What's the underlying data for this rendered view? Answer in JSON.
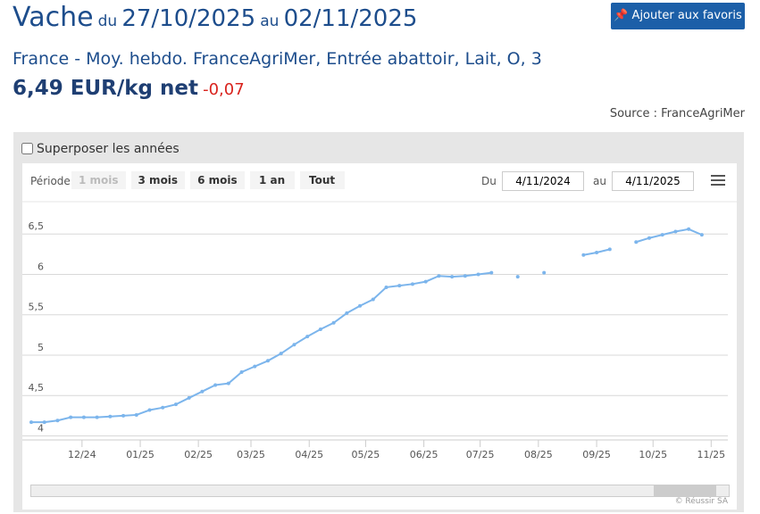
{
  "header": {
    "title": "Vache",
    "from_word": "du",
    "from_date": "27/10/2025",
    "to_word": "au",
    "to_date": "02/11/2025",
    "favorite_button": "Ajouter aux favoris",
    "subtitle": "France - Moy. hebdo. FranceAgriMer, Entrée abattoir, Lait, O, 3",
    "price": "6,49 EUR/kg net",
    "change": "-0,07",
    "source": "Source : FranceAgriMer"
  },
  "controls": {
    "overlay_years": "Superposer les années",
    "period_label": "Période",
    "periods": [
      "1 mois",
      "3 mois",
      "6 mois",
      "1 an",
      "Tout"
    ],
    "from_label": "Du",
    "from_value": "4/11/2024",
    "to_label": "au",
    "to_value": "4/11/2025",
    "credit": "© Réussir SA"
  },
  "chart_data": {
    "type": "line",
    "x": [
      0,
      1,
      2,
      3,
      4,
      5,
      6,
      7,
      8,
      9,
      10,
      11,
      12,
      13,
      14,
      15,
      16,
      17,
      18,
      19,
      20,
      21,
      22,
      23,
      24,
      25,
      26,
      27,
      28,
      29,
      30,
      31,
      32,
      33,
      34,
      35,
      36,
      37,
      38,
      39,
      40,
      41,
      42,
      43,
      44,
      45,
      46,
      47,
      48,
      49,
      50,
      51
    ],
    "series": [
      {
        "name": "Vache",
        "color": "#7cb5ec",
        "values": [
          4.17,
          4.17,
          4.19,
          4.23,
          4.23,
          4.23,
          4.24,
          4.25,
          4.26,
          4.32,
          4.35,
          4.39,
          4.47,
          4.55,
          4.63,
          4.65,
          4.79,
          4.86,
          4.93,
          5.02,
          5.13,
          5.23,
          5.32,
          5.4,
          5.52,
          5.61,
          5.69,
          5.84,
          5.86,
          5.88,
          5.91,
          5.98,
          5.97,
          5.98,
          6.0,
          6.02,
          null,
          5.97,
          null,
          6.02,
          null,
          null,
          6.24,
          6.27,
          6.31,
          null,
          6.4,
          6.45,
          6.49,
          6.53,
          6.56,
          6.49
        ]
      }
    ],
    "xlim": [
      0,
      52.3
    ],
    "xticks": [
      {
        "value": 3.86,
        "label": "12/24"
      },
      {
        "value": 8.29,
        "label": "01/25"
      },
      {
        "value": 12.71,
        "label": "02/25"
      },
      {
        "value": 16.71,
        "label": "03/25"
      },
      {
        "value": 21.14,
        "label": "04/25"
      },
      {
        "value": 25.43,
        "label": "05/25"
      },
      {
        "value": 29.86,
        "label": "06/25"
      },
      {
        "value": 34.14,
        "label": "07/25"
      },
      {
        "value": 38.57,
        "label": "08/25"
      },
      {
        "value": 43,
        "label": "09/25"
      },
      {
        "value": 47.29,
        "label": "10/25"
      },
      {
        "value": 51.71,
        "label": "11/25"
      }
    ],
    "ylim": [
      3.95,
      6.9
    ],
    "yticks": [
      4,
      {
        "value": 4.5,
        "label": "4,5"
      },
      5,
      {
        "value": 5.5,
        "label": "5,5"
      },
      6,
      {
        "value": 6.5,
        "label": "6,5"
      }
    ],
    "grid": true
  }
}
